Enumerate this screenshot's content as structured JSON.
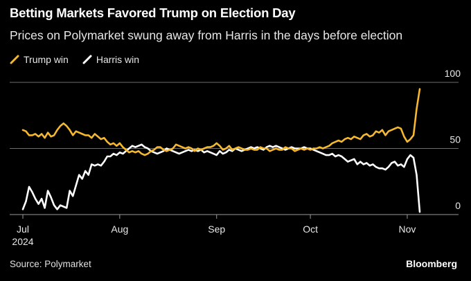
{
  "header": {
    "title": "Betting Markets Favored Trump on Election Day",
    "subtitle": "Prices on Polymarket swung away from Harris in the days before election"
  },
  "footer": {
    "source": "Source: Polymarket",
    "brand": "Bloomberg"
  },
  "colors": {
    "trump": "#f5b82e",
    "harris": "#ffffff",
    "grid": "#6e6e6e",
    "axis": "#9a9a9a",
    "text": "#e8e8e8"
  },
  "chart_data": {
    "type": "line",
    "title": "Betting Markets Favored Trump on Election Day",
    "subtitle": "Prices on Polymarket swung away from Harris in the days before election",
    "xlabel": "",
    "ylabel": "",
    "x_range": [
      "2024-07-01",
      "2024-11-05"
    ],
    "ylim": [
      0,
      100
    ],
    "y_ticks": [
      0,
      50,
      100
    ],
    "x_ticks": [
      {
        "date": "2024-07-01",
        "label": "Jul",
        "sublabel": "2024"
      },
      {
        "date": "2024-08-01",
        "label": "Aug"
      },
      {
        "date": "2024-09-01",
        "label": "Sep"
      },
      {
        "date": "2024-10-01",
        "label": "Oct"
      },
      {
        "date": "2024-11-01",
        "label": "Nov"
      }
    ],
    "grid": "horizontal",
    "legend": "top-left",
    "x_start": "2024-07-01",
    "series": [
      {
        "name": "Trump win",
        "color": "#f5b82e",
        "day_offsets": [
          0,
          1,
          2,
          3,
          4,
          5,
          6,
          7,
          8,
          9,
          10,
          11,
          12,
          13,
          14,
          15,
          16,
          17,
          18,
          19,
          20,
          21,
          22,
          23,
          24,
          25,
          26,
          27,
          28,
          29,
          30,
          31,
          32,
          33,
          34,
          35,
          36,
          37,
          38,
          39,
          40,
          41,
          42,
          43,
          44,
          45,
          46,
          47,
          48,
          49,
          50,
          51,
          52,
          53,
          54,
          55,
          56,
          57,
          58,
          59,
          60,
          61,
          62,
          63,
          64,
          65,
          66,
          67,
          68,
          69,
          70,
          71,
          72,
          73,
          74,
          75,
          76,
          77,
          78,
          79,
          80,
          81,
          82,
          83,
          84,
          85,
          86,
          87,
          88,
          89,
          90,
          91,
          92,
          93,
          94,
          95,
          96,
          97,
          98,
          99,
          100,
          101,
          102,
          103,
          104,
          105,
          106,
          107,
          108,
          109,
          110,
          111,
          112,
          113,
          114,
          115,
          116,
          117,
          118,
          119,
          120,
          121,
          122,
          123,
          124,
          125,
          126,
          127
        ],
        "values": [
          64,
          63,
          60,
          60,
          61,
          59,
          61,
          58,
          62,
          59,
          60,
          64,
          67,
          69,
          67,
          64,
          60,
          63,
          62,
          61,
          60,
          60,
          58,
          61,
          59,
          57,
          58,
          55,
          53,
          54,
          52,
          54,
          51,
          49,
          47,
          48,
          47,
          48,
          46,
          45,
          46,
          48,
          49,
          51,
          51,
          49,
          48,
          49,
          50,
          53,
          52,
          51,
          50,
          51,
          50,
          48,
          50,
          49,
          50,
          51,
          51,
          52,
          54,
          52,
          49,
          50,
          52,
          49,
          50,
          51,
          50,
          49,
          49,
          50,
          49,
          49,
          51,
          50,
          50,
          48,
          49,
          50,
          49,
          49,
          51,
          50,
          50,
          48,
          49,
          50,
          49,
          50,
          49,
          50,
          50,
          51,
          50,
          51,
          52,
          54,
          55,
          56,
          55,
          57,
          58,
          57,
          59,
          58,
          57,
          60,
          61,
          59,
          60,
          63,
          62,
          64,
          60,
          63,
          64,
          65,
          66,
          65,
          59,
          55,
          57,
          60,
          80,
          95
        ]
      },
      {
        "name": "Harris win",
        "color": "#ffffff",
        "day_offsets": [
          0,
          1,
          2,
          3,
          4,
          5,
          6,
          7,
          8,
          9,
          10,
          11,
          12,
          13,
          14,
          15,
          16,
          17,
          18,
          19,
          20,
          21,
          22,
          23,
          24,
          25,
          26,
          27,
          28,
          29,
          30,
          31,
          32,
          33,
          34,
          35,
          36,
          37,
          38,
          39,
          40,
          41,
          42,
          43,
          44,
          45,
          46,
          47,
          48,
          49,
          50,
          51,
          52,
          53,
          54,
          55,
          56,
          57,
          58,
          59,
          60,
          61,
          62,
          63,
          64,
          65,
          66,
          67,
          68,
          69,
          70,
          71,
          72,
          73,
          74,
          75,
          76,
          77,
          78,
          79,
          80,
          81,
          82,
          83,
          84,
          85,
          86,
          87,
          88,
          89,
          90,
          91,
          92,
          93,
          94,
          95,
          96,
          97,
          98,
          99,
          100,
          101,
          102,
          103,
          104,
          105,
          106,
          107,
          108,
          109,
          110,
          111,
          112,
          113,
          114,
          115,
          116,
          117,
          118,
          119,
          120,
          121,
          122,
          123,
          124,
          125,
          126,
          127
        ],
        "values": [
          4,
          10,
          21,
          17,
          12,
          8,
          12,
          5,
          18,
          13,
          7,
          4,
          7,
          6,
          5,
          18,
          14,
          22,
          30,
          27,
          33,
          30,
          38,
          37,
          38,
          37,
          40,
          44,
          44,
          46,
          45,
          47,
          46,
          48,
          50,
          52,
          51,
          52,
          53,
          51,
          50,
          48,
          47,
          46,
          47,
          48,
          50,
          49,
          48,
          47,
          46,
          47,
          48,
          49,
          48,
          49,
          48,
          49,
          47,
          48,
          47,
          46,
          45,
          48,
          46,
          47,
          49,
          48,
          50,
          49,
          48,
          49,
          50,
          51,
          50,
          51,
          50,
          49,
          51,
          52,
          51,
          52,
          51,
          50,
          49,
          50,
          51,
          50,
          50,
          50,
          51,
          50,
          50,
          49,
          48,
          47,
          46,
          45,
          45,
          46,
          44,
          45,
          44,
          42,
          40,
          41,
          42,
          38,
          40,
          38,
          39,
          37,
          38,
          36,
          35,
          35,
          34,
          36,
          39,
          40,
          37,
          38,
          36,
          42,
          45,
          43,
          30,
          2
        ]
      }
    ]
  }
}
